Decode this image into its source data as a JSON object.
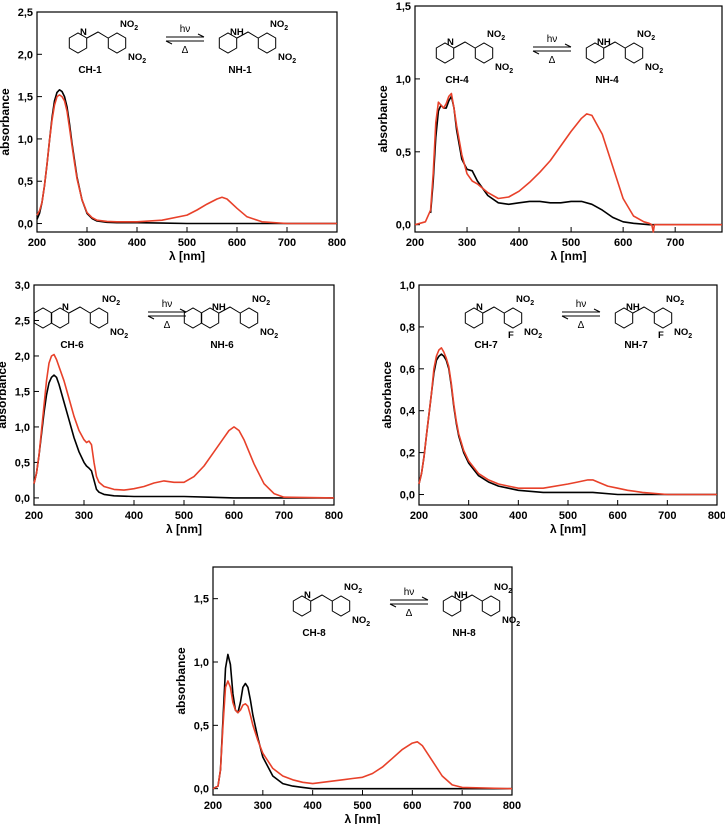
{
  "figure": {
    "arrow_forward_label": "hν",
    "arrow_back_label": "Δ",
    "atoms": {
      "no2": "NO",
      "no2_sub": "2",
      "n": "N",
      "nh": "H",
      "f": "F"
    }
  },
  "colors": {
    "series_a": "#000000",
    "series_b": "#e8412a"
  },
  "chart_data": [
    {
      "type": "line",
      "panel": "CH-1 / NH-1",
      "xlabel": "λ [nm]",
      "ylabel": "absorbance",
      "xlim": [
        200,
        800
      ],
      "ylim": [
        -0.1,
        2.5
      ],
      "xticks": [
        "200",
        "300",
        "400",
        "500",
        "600",
        "700",
        "800"
      ],
      "yticks": [
        "0,0",
        "0,5",
        "1,0",
        "1,5",
        "2,0",
        "2,5"
      ],
      "reactant_label": "CH-1",
      "product_label": "NH-1",
      "series": [
        {
          "color": "black",
          "x": [
            200,
            205,
            210,
            215,
            220,
            225,
            230,
            235,
            240,
            245,
            250,
            255,
            260,
            265,
            270,
            275,
            280,
            290,
            300,
            310,
            320,
            340,
            360,
            400,
            450,
            500,
            550,
            600,
            650,
            700,
            800
          ],
          "y": [
            0.05,
            0.12,
            0.25,
            0.45,
            0.7,
            0.98,
            1.25,
            1.45,
            1.55,
            1.58,
            1.56,
            1.5,
            1.38,
            1.18,
            0.95,
            0.75,
            0.55,
            0.28,
            0.12,
            0.06,
            0.03,
            0.015,
            0.01,
            0.01,
            0.005,
            0.0,
            0.0,
            0.0,
            0.0,
            0.0,
            0.0
          ]
        },
        {
          "color": "red",
          "x": [
            200,
            205,
            210,
            215,
            220,
            225,
            230,
            235,
            240,
            245,
            250,
            255,
            260,
            265,
            270,
            275,
            280,
            290,
            300,
            310,
            320,
            340,
            360,
            400,
            450,
            500,
            520,
            540,
            560,
            570,
            580,
            600,
            620,
            650,
            700,
            800
          ],
          "y": [
            0.1,
            0.15,
            0.25,
            0.45,
            0.7,
            0.98,
            1.22,
            1.4,
            1.5,
            1.52,
            1.5,
            1.45,
            1.33,
            1.13,
            0.92,
            0.72,
            0.53,
            0.28,
            0.13,
            0.07,
            0.04,
            0.025,
            0.02,
            0.02,
            0.04,
            0.1,
            0.16,
            0.23,
            0.29,
            0.31,
            0.29,
            0.18,
            0.08,
            0.02,
            0.0,
            0.0
          ]
        }
      ]
    },
    {
      "type": "line",
      "panel": "CH-4 / NH-4",
      "xlabel": "λ [nm]",
      "ylabel": "absorbance",
      "xlim": [
        200,
        790
      ],
      "ylim": [
        -0.05,
        1.5
      ],
      "xticks": [
        "200",
        "300",
        "400",
        "500",
        "600",
        "700"
      ],
      "yticks": [
        "0,0",
        "0,5",
        "1,0",
        "1,5"
      ],
      "reactant_label": "CH-4",
      "product_label": "NH-4",
      "series": [
        {
          "color": "black",
          "x": [
            230,
            235,
            240,
            245,
            250,
            255,
            260,
            265,
            270,
            275,
            280,
            290,
            300,
            310,
            320,
            340,
            360,
            380,
            400,
            420,
            440,
            460,
            480,
            500,
            520,
            540,
            560,
            580,
            600,
            620,
            650,
            700,
            790
          ],
          "y": [
            0.08,
            0.3,
            0.6,
            0.78,
            0.82,
            0.8,
            0.8,
            0.85,
            0.88,
            0.8,
            0.65,
            0.45,
            0.38,
            0.37,
            0.3,
            0.2,
            0.15,
            0.14,
            0.15,
            0.16,
            0.16,
            0.15,
            0.15,
            0.16,
            0.16,
            0.14,
            0.1,
            0.05,
            0.02,
            0.01,
            0.0,
            0.0,
            0.0
          ]
        },
        {
          "color": "red",
          "x": [
            200,
            220,
            230,
            235,
            240,
            245,
            250,
            255,
            260,
            265,
            270,
            275,
            280,
            290,
            300,
            310,
            320,
            340,
            360,
            380,
            400,
            420,
            440,
            460,
            480,
            500,
            520,
            530,
            540,
            560,
            580,
            600,
            620,
            640,
            650,
            655,
            658,
            660,
            665,
            680,
            700,
            790
          ],
          "y": [
            0.0,
            0.02,
            0.1,
            0.35,
            0.7,
            0.84,
            0.82,
            0.8,
            0.83,
            0.88,
            0.9,
            0.8,
            0.68,
            0.48,
            0.35,
            0.3,
            0.28,
            0.22,
            0.18,
            0.19,
            0.23,
            0.29,
            0.36,
            0.44,
            0.54,
            0.64,
            0.73,
            0.76,
            0.75,
            0.62,
            0.4,
            0.18,
            0.06,
            0.02,
            0.01,
            0.0,
            -0.05,
            0.0,
            0.0,
            0.0,
            0.0,
            0.0
          ]
        }
      ]
    },
    {
      "type": "line",
      "panel": "CH-6 / NH-6",
      "xlabel": "λ [nm]",
      "ylabel": "absorbance",
      "xlim": [
        200,
        800
      ],
      "ylim": [
        -0.1,
        3.0
      ],
      "xticks": [
        "200",
        "300",
        "400",
        "500",
        "600",
        "700",
        "800"
      ],
      "yticks": [
        "0,0",
        "0,5",
        "1,0",
        "1,5",
        "2,0",
        "2,5",
        "3,0"
      ],
      "reactant_label": "CH-6",
      "product_label": "NH-6",
      "series": [
        {
          "color": "black",
          "x": [
            200,
            205,
            210,
            215,
            220,
            225,
            230,
            235,
            240,
            245,
            250,
            260,
            270,
            280,
            290,
            300,
            305,
            310,
            315,
            320,
            325,
            330,
            340,
            360,
            400,
            450,
            500,
            550,
            600,
            650,
            700,
            800
          ],
          "y": [
            0.2,
            0.35,
            0.6,
            0.9,
            1.2,
            1.45,
            1.62,
            1.7,
            1.73,
            1.7,
            1.6,
            1.35,
            1.1,
            0.85,
            0.65,
            0.5,
            0.45,
            0.42,
            0.38,
            0.25,
            0.12,
            0.08,
            0.05,
            0.03,
            0.02,
            0.02,
            0.02,
            0.01,
            0.0,
            0.0,
            0.0,
            0.0
          ]
        },
        {
          "color": "red",
          "x": [
            200,
            205,
            210,
            215,
            220,
            225,
            230,
            235,
            240,
            245,
            250,
            260,
            270,
            280,
            290,
            300,
            305,
            310,
            315,
            320,
            325,
            330,
            340,
            360,
            380,
            400,
            420,
            440,
            460,
            480,
            500,
            520,
            540,
            560,
            580,
            590,
            600,
            610,
            620,
            640,
            660,
            680,
            700,
            800
          ],
          "y": [
            0.2,
            0.35,
            0.6,
            0.95,
            1.3,
            1.65,
            1.9,
            2.0,
            2.02,
            1.95,
            1.85,
            1.65,
            1.4,
            1.15,
            0.95,
            0.82,
            0.78,
            0.8,
            0.75,
            0.5,
            0.3,
            0.22,
            0.16,
            0.12,
            0.11,
            0.13,
            0.16,
            0.21,
            0.24,
            0.22,
            0.22,
            0.3,
            0.45,
            0.65,
            0.85,
            0.95,
            1.0,
            0.95,
            0.82,
            0.48,
            0.2,
            0.06,
            0.01,
            0.0
          ]
        }
      ]
    },
    {
      "type": "line",
      "panel": "CH-7 / NH-7",
      "xlabel": "λ [nm]",
      "ylabel": "absorbance",
      "xlim": [
        200,
        800
      ],
      "ylim": [
        -0.05,
        1.0
      ],
      "xticks": [
        "200",
        "300",
        "400",
        "500",
        "600",
        "700",
        "800"
      ],
      "yticks": [
        "0,0",
        "0,2",
        "0,4",
        "0,6",
        "0,8",
        "1,0"
      ],
      "reactant_label": "CH-7",
      "product_label": "NH-7",
      "series": [
        {
          "color": "black",
          "x": [
            200,
            205,
            210,
            215,
            220,
            225,
            230,
            235,
            240,
            245,
            250,
            255,
            260,
            265,
            270,
            275,
            280,
            290,
            300,
            320,
            340,
            360,
            380,
            400,
            450,
            500,
            550,
            600,
            650,
            700,
            800
          ],
          "y": [
            0.05,
            0.1,
            0.18,
            0.28,
            0.38,
            0.48,
            0.58,
            0.64,
            0.66,
            0.67,
            0.66,
            0.64,
            0.6,
            0.52,
            0.42,
            0.34,
            0.28,
            0.2,
            0.15,
            0.09,
            0.06,
            0.04,
            0.03,
            0.02,
            0.01,
            0.01,
            0.01,
            0.0,
            0.0,
            0.0,
            0.0
          ]
        },
        {
          "color": "red",
          "x": [
            200,
            205,
            210,
            215,
            220,
            225,
            230,
            235,
            240,
            245,
            250,
            255,
            260,
            265,
            270,
            275,
            280,
            290,
            300,
            320,
            340,
            360,
            380,
            400,
            450,
            500,
            520,
            540,
            550,
            560,
            580,
            600,
            620,
            650,
            700,
            800
          ],
          "y": [
            0.05,
            0.1,
            0.18,
            0.28,
            0.38,
            0.48,
            0.6,
            0.66,
            0.69,
            0.7,
            0.68,
            0.65,
            0.61,
            0.53,
            0.43,
            0.35,
            0.29,
            0.21,
            0.16,
            0.1,
            0.07,
            0.05,
            0.04,
            0.03,
            0.03,
            0.05,
            0.06,
            0.07,
            0.07,
            0.06,
            0.04,
            0.03,
            0.02,
            0.01,
            0.0,
            0.0
          ]
        }
      ]
    },
    {
      "type": "line",
      "panel": "CH-8 / NH-8",
      "xlabel": "λ [nm]",
      "ylabel": "absorbance",
      "xlim": [
        200,
        800
      ],
      "ylim": [
        -0.05,
        1.75
      ],
      "xticks": [
        "200",
        "300",
        "400",
        "500",
        "600",
        "700",
        "800"
      ],
      "yticks": [
        "0,0",
        "0,5",
        "1,0",
        "1,5"
      ],
      "reactant_label": "CH-8",
      "product_label": "NH-8",
      "series": [
        {
          "color": "black",
          "x": [
            200,
            210,
            215,
            220,
            225,
            230,
            235,
            240,
            245,
            250,
            255,
            260,
            265,
            270,
            275,
            280,
            290,
            300,
            320,
            340,
            360,
            380,
            400,
            450,
            500,
            550,
            600,
            650,
            700,
            800
          ],
          "y": [
            0.0,
            0.02,
            0.15,
            0.55,
            0.95,
            1.06,
            0.98,
            0.75,
            0.62,
            0.6,
            0.68,
            0.8,
            0.83,
            0.8,
            0.7,
            0.58,
            0.4,
            0.25,
            0.1,
            0.04,
            0.02,
            0.01,
            0.0,
            0.0,
            0.0,
            0.0,
            0.0,
            0.0,
            0.0,
            0.0
          ]
        },
        {
          "color": "red",
          "x": [
            200,
            210,
            215,
            220,
            225,
            230,
            235,
            240,
            245,
            250,
            255,
            260,
            265,
            270,
            275,
            280,
            290,
            300,
            320,
            340,
            360,
            380,
            400,
            420,
            440,
            460,
            480,
            500,
            520,
            540,
            560,
            580,
            600,
            610,
            620,
            640,
            660,
            680,
            700,
            800
          ],
          "y": [
            0.0,
            0.02,
            0.15,
            0.5,
            0.8,
            0.85,
            0.8,
            0.68,
            0.62,
            0.6,
            0.62,
            0.66,
            0.67,
            0.65,
            0.58,
            0.5,
            0.38,
            0.28,
            0.16,
            0.1,
            0.07,
            0.05,
            0.04,
            0.05,
            0.06,
            0.07,
            0.08,
            0.09,
            0.12,
            0.17,
            0.24,
            0.31,
            0.36,
            0.37,
            0.34,
            0.22,
            0.1,
            0.03,
            0.01,
            0.0
          ]
        }
      ]
    }
  ]
}
